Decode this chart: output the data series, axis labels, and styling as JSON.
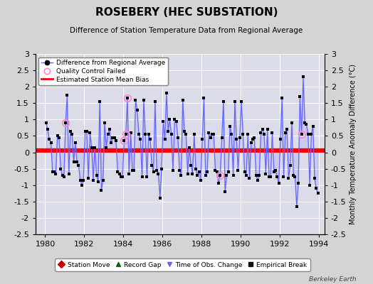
{
  "title": "ROSEBERY (HEC SUBSTATION)",
  "subtitle": "Difference of Station Temperature Data from Regional Average",
  "ylabel": "Monthly Temperature Anomaly Difference (°C)",
  "xlabel_ticks": [
    1980,
    1982,
    1984,
    1986,
    1988,
    1990,
    1992,
    1994
  ],
  "xlim": [
    1979.5,
    1994.3
  ],
  "ylim": [
    -2.5,
    3.0
  ],
  "yticks": [
    -2.5,
    -2,
    -1.5,
    -1,
    -0.5,
    0,
    0.5,
    1,
    1.5,
    2,
    2.5,
    3
  ],
  "bias_line": 0.05,
  "bias_color": "#ff0000",
  "line_color": "#6666ff",
  "line_fill_color": "#aaaaff",
  "marker_color": "#000000",
  "bg_color": "#d4d4d4",
  "plot_bg_color": "#dcdce8",
  "monthly_data": [
    0.9,
    0.7,
    0.4,
    0.3,
    -0.6,
    -0.6,
    -0.65,
    0.5,
    0.45,
    -0.5,
    -0.7,
    -0.75,
    0.9,
    1.75,
    -0.65,
    0.65,
    0.55,
    -0.3,
    0.3,
    -0.3,
    -0.4,
    -0.85,
    -1.0,
    -0.85,
    0.65,
    0.65,
    -0.8,
    0.6,
    0.15,
    -0.85,
    0.15,
    -0.7,
    -0.9,
    1.55,
    -1.15,
    -0.85,
    0.9,
    0.15,
    0.55,
    0.7,
    0.3,
    0.45,
    0.45,
    0.35,
    -0.6,
    -0.65,
    -0.75,
    -0.75,
    0.35,
    0.55,
    1.65,
    -0.65,
    0.6,
    -0.55,
    -0.55,
    1.6,
    1.3,
    0.55,
    0.4,
    -0.75,
    1.6,
    0.55,
    -0.75,
    0.55,
    0.4,
    -0.4,
    -0.6,
    1.55,
    -0.55,
    -0.65,
    -1.4,
    -0.5,
    0.95,
    0.4,
    1.8,
    0.65,
    1.0,
    0.55,
    -0.55,
    1.0,
    0.95,
    0.45,
    -0.55,
    -0.7,
    1.6,
    0.65,
    0.55,
    -0.65,
    0.15,
    -0.4,
    -0.65,
    0.55,
    -0.5,
    -0.7,
    -0.6,
    -0.85,
    0.4,
    1.65,
    -0.7,
    -0.6,
    0.6,
    0.45,
    0.55,
    0.55,
    -0.55,
    -0.6,
    -0.95,
    -0.7,
    0.45,
    1.55,
    -1.2,
    -0.7,
    -0.6,
    0.8,
    0.55,
    -0.7,
    1.55,
    0.4,
    -0.55,
    0.45,
    1.55,
    0.55,
    -0.6,
    -0.7,
    0.55,
    -0.8,
    0.3,
    0.4,
    0.45,
    -0.7,
    -0.85,
    -0.7,
    0.6,
    0.7,
    0.55,
    -0.65,
    0.7,
    -0.75,
    -0.75,
    0.6,
    -0.6,
    -0.55,
    -0.75,
    -0.95,
    0.4,
    1.65,
    -0.75,
    0.6,
    0.7,
    -0.8,
    -0.4,
    0.9,
    -0.7,
    -0.75,
    -1.65,
    -0.95,
    1.7,
    0.55,
    2.3,
    0.9,
    0.85,
    0.55,
    -1.0,
    0.55,
    0.8,
    -0.8,
    -1.1,
    -1.25
  ],
  "qc_failed_indices": [
    12,
    48,
    49,
    50,
    107,
    157
  ],
  "start_year": 1980,
  "start_month": 1
}
